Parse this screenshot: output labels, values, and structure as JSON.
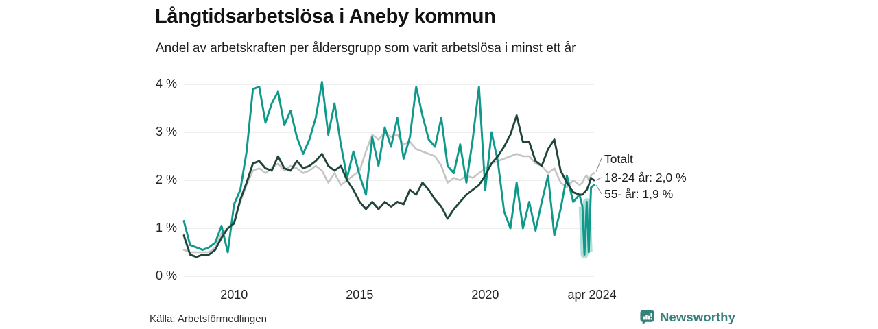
{
  "header": {
    "title": "Långtidsarbetslösa i Aneby kommun",
    "subtitle": "Andel av arbetskraften per åldersgrupp som varit arbetslösa i minst ett år"
  },
  "footer": {
    "source": "Källa: Arbetsförmedlingen",
    "brand": "Newsworthy"
  },
  "colors": {
    "total": "#c5c5c5",
    "young": "#21453a",
    "old": "#0f998a",
    "band": "#0f998a",
    "grid": "#e4e4e4",
    "leader": "#8f8f8f",
    "brand_teal": "#35807a"
  },
  "chart_data": {
    "type": "line",
    "title": "Långtidsarbetslösa i Aneby kommun",
    "subtitle": "Andel av arbetskraften per åldersgrupp som varit arbetslösa i minst ett år",
    "x_unit": "decimal_year",
    "xlim": [
      2008,
      2024.33
    ],
    "ylim": [
      0,
      4
    ],
    "grid": true,
    "legend_position": "right-end-labels",
    "yticks": [
      {
        "v": 0,
        "label": "0 %"
      },
      {
        "v": 1,
        "label": "1 %"
      },
      {
        "v": 2,
        "label": "2 %"
      },
      {
        "v": 3,
        "label": "3 %"
      },
      {
        "v": 4,
        "label": "4 %"
      }
    ],
    "xticks": [
      {
        "x": 2010,
        "label": "2010"
      },
      {
        "x": 2015,
        "label": "2015"
      },
      {
        "x": 2020,
        "label": "2020"
      },
      {
        "x": 2024.25,
        "label": "apr 2024"
      }
    ],
    "x": [
      2008.0,
      2008.25,
      2008.5,
      2008.75,
      2009.0,
      2009.25,
      2009.5,
      2009.75,
      2010.0,
      2010.25,
      2010.5,
      2010.75,
      2011.0,
      2011.25,
      2011.5,
      2011.75,
      2012.0,
      2012.25,
      2012.5,
      2012.75,
      2013.0,
      2013.25,
      2013.5,
      2013.75,
      2014.0,
      2014.25,
      2014.5,
      2014.75,
      2015.0,
      2015.25,
      2015.5,
      2015.75,
      2016.0,
      2016.25,
      2016.5,
      2016.75,
      2017.0,
      2017.25,
      2017.5,
      2017.75,
      2018.0,
      2018.25,
      2018.5,
      2018.75,
      2019.0,
      2019.25,
      2019.5,
      2019.75,
      2020.0,
      2020.25,
      2020.5,
      2020.75,
      2021.0,
      2021.25,
      2021.5,
      2021.75,
      2022.0,
      2022.25,
      2022.5,
      2022.75,
      2023.0,
      2023.25,
      2023.5,
      2023.75,
      2023.87,
      2023.95,
      2024.04,
      2024.12,
      2024.21,
      2024.33
    ],
    "series": [
      {
        "name": "Totalt",
        "color_key": "total",
        "end_label": "Totalt",
        "values": [
          0.55,
          0.5,
          0.5,
          0.5,
          0.5,
          0.6,
          0.9,
          1.0,
          1.15,
          1.55,
          1.9,
          2.2,
          2.25,
          2.15,
          2.25,
          2.35,
          2.2,
          2.3,
          2.25,
          2.15,
          2.2,
          2.3,
          2.2,
          1.95,
          2.15,
          1.9,
          2.0,
          2.1,
          2.2,
          2.6,
          2.95,
          2.85,
          3.0,
          2.9,
          2.95,
          2.75,
          2.8,
          2.65,
          2.6,
          2.55,
          2.5,
          2.3,
          1.95,
          2.05,
          2.0,
          2.1,
          2.05,
          2.15,
          2.25,
          2.35,
          2.4,
          2.45,
          2.5,
          2.55,
          2.5,
          2.5,
          2.35,
          2.3,
          2.15,
          2.25,
          1.95,
          1.85,
          2.0,
          1.9,
          1.95,
          2.05,
          2.1,
          2.0,
          2.1,
          2.15
        ]
      },
      {
        "name": "18-24 år",
        "color_key": "young",
        "end_label": "18-24 år: 2,0 %",
        "end_value": "2,0 %",
        "values": [
          0.85,
          0.45,
          0.4,
          0.45,
          0.45,
          0.55,
          0.8,
          1.0,
          1.1,
          1.6,
          1.95,
          2.35,
          2.4,
          2.25,
          2.2,
          2.5,
          2.25,
          2.2,
          2.4,
          2.25,
          2.3,
          2.4,
          2.55,
          2.3,
          2.2,
          2.3,
          2.0,
          1.8,
          1.55,
          1.4,
          1.55,
          1.4,
          1.55,
          1.45,
          1.55,
          1.5,
          1.8,
          1.7,
          1.95,
          1.8,
          1.6,
          1.45,
          1.2,
          1.4,
          1.55,
          1.7,
          1.8,
          1.9,
          2.1,
          2.35,
          2.5,
          2.7,
          2.95,
          3.35,
          2.8,
          2.8,
          2.4,
          2.3,
          2.65,
          2.85,
          2.2,
          1.95,
          1.75,
          1.7,
          1.7,
          1.75,
          1.8,
          1.9,
          2.05,
          2.0
        ]
      },
      {
        "name": "55- år",
        "color_key": "old",
        "end_label": "55- år: 1,9 %",
        "end_value": "1,9 %",
        "values": [
          1.15,
          0.65,
          0.6,
          0.55,
          0.6,
          0.7,
          1.05,
          0.5,
          1.5,
          1.8,
          2.6,
          3.9,
          3.95,
          3.2,
          3.6,
          3.85,
          3.15,
          3.45,
          2.9,
          2.55,
          2.85,
          3.3,
          4.05,
          2.95,
          3.6,
          2.75,
          2.05,
          2.6,
          2.1,
          1.7,
          2.9,
          2.3,
          3.1,
          2.7,
          3.3,
          2.45,
          2.9,
          3.95,
          3.35,
          2.85,
          2.7,
          3.3,
          2.3,
          2.15,
          2.75,
          1.95,
          2.85,
          3.95,
          1.8,
          3.0,
          2.4,
          1.35,
          1.0,
          1.95,
          1.0,
          1.55,
          0.95,
          1.55,
          2.1,
          0.85,
          1.4,
          2.1,
          1.55,
          1.7,
          1.45,
          0.45,
          1.55,
          0.5,
          1.85,
          1.9
        ]
      }
    ],
    "highlight_band": {
      "series": "55- år",
      "from": 2023.87,
      "to": 2024.12
    }
  }
}
